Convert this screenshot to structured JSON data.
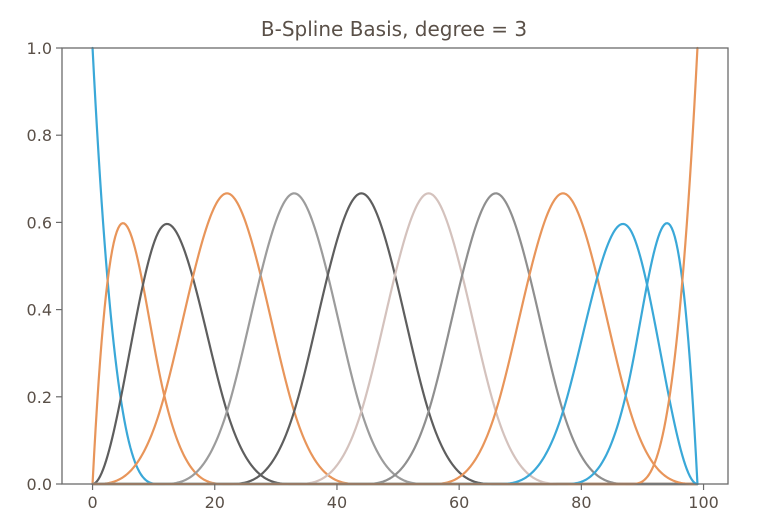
{
  "chart_data": {
    "type": "line",
    "title": "B-Spline Basis, degree = 3",
    "xlabel": "",
    "ylabel": "",
    "xlim": [
      -5,
      104
    ],
    "ylim": [
      0,
      1.0
    ],
    "x_ticks": [
      0,
      20,
      40,
      60,
      80,
      100
    ],
    "x_tick_labels": [
      "0",
      "20",
      "40",
      "60",
      "80",
      "100"
    ],
    "y_ticks": [
      0.0,
      0.2,
      0.4,
      0.6,
      0.8,
      1.0
    ],
    "y_tick_labels": [
      "0.0",
      "0.2",
      "0.4",
      "0.6",
      "0.8",
      "1.0"
    ],
    "grid": false,
    "degree": 3,
    "knots": [
      0,
      0,
      0,
      0,
      11,
      22,
      33,
      44,
      55,
      66,
      77,
      88,
      99,
      99,
      99,
      99
    ],
    "series_peaks": [
      {
        "x": 0,
        "y": 1.0
      },
      {
        "x": 5,
        "y": 0.6
      },
      {
        "x": 12,
        "y": 0.6
      },
      {
        "x": 22,
        "y": 0.667
      },
      {
        "x": 33,
        "y": 0.667
      },
      {
        "x": 44,
        "y": 0.667
      },
      {
        "x": 55,
        "y": 0.667
      },
      {
        "x": 66,
        "y": 0.667
      },
      {
        "x": 77,
        "y": 0.667
      },
      {
        "x": 87,
        "y": 0.6
      },
      {
        "x": 94,
        "y": 0.6
      },
      {
        "x": 99,
        "y": 1.0
      }
    ],
    "series_colors": [
      "#3aa8d8",
      "#e8955a",
      "#5e5e5e",
      "#e8955a",
      "#9c9c9c",
      "#5e5e5e",
      "#d4c2bd",
      "#8f8f8f",
      "#e8955a",
      "#3aa8d8",
      "#3aa8d8",
      "#e8955a"
    ]
  }
}
